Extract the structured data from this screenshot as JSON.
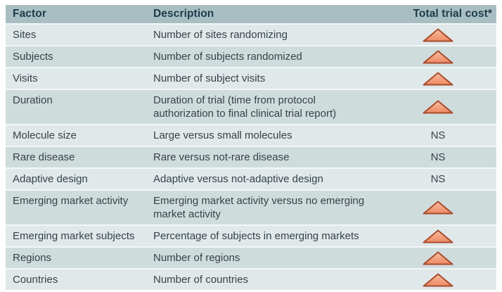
{
  "colors": {
    "header_bg": "#a9bec2",
    "header_text": "#1c3b4a",
    "row_light_bg": "#e0e8e9",
    "row_dark_bg": "#cfdcdc",
    "body_text": "#37424a",
    "triangle_fill_top": "#f9c2a6",
    "triangle_fill_bottom": "#ed8a64",
    "triangle_border": "#a84b2d"
  },
  "table": {
    "columns": [
      {
        "label": "Factor"
      },
      {
        "label": "Description"
      },
      {
        "label": "Total trial cost*"
      }
    ],
    "ns_label": "NS",
    "cost_icon_meaning": "cost-increase-triangle-icon",
    "rows": [
      {
        "factor": "Sites",
        "description": "Number of sites randomizing",
        "cost": "increase"
      },
      {
        "factor": "Subjects",
        "description": "Number of subjects randomized",
        "cost": "increase"
      },
      {
        "factor": "Visits",
        "description": "Number of subject visits",
        "cost": "increase"
      },
      {
        "factor": "Duration",
        "description": "Duration of trial (time from protocol\nauthorization to final clinical trial report)",
        "cost": "increase"
      },
      {
        "factor": "Molecule size",
        "description": "Large versus small molecules",
        "cost": "NS"
      },
      {
        "factor": "Rare disease",
        "description": "Rare versus not-rare disease",
        "cost": "NS"
      },
      {
        "factor": "Adaptive design",
        "description": "Adaptive versus not-adaptive design",
        "cost": "NS"
      },
      {
        "factor": "Emerging market activity",
        "description": "Emerging market activity versus no emerging\nmarket activity",
        "cost": "increase"
      },
      {
        "factor": "Emerging market subjects",
        "description": "Percentage of subjects in emerging markets",
        "cost": "increase"
      },
      {
        "factor": "Regions",
        "description": "Number of regions",
        "cost": "increase"
      },
      {
        "factor": "Countries",
        "description": "Number of countries",
        "cost": "increase"
      }
    ]
  }
}
